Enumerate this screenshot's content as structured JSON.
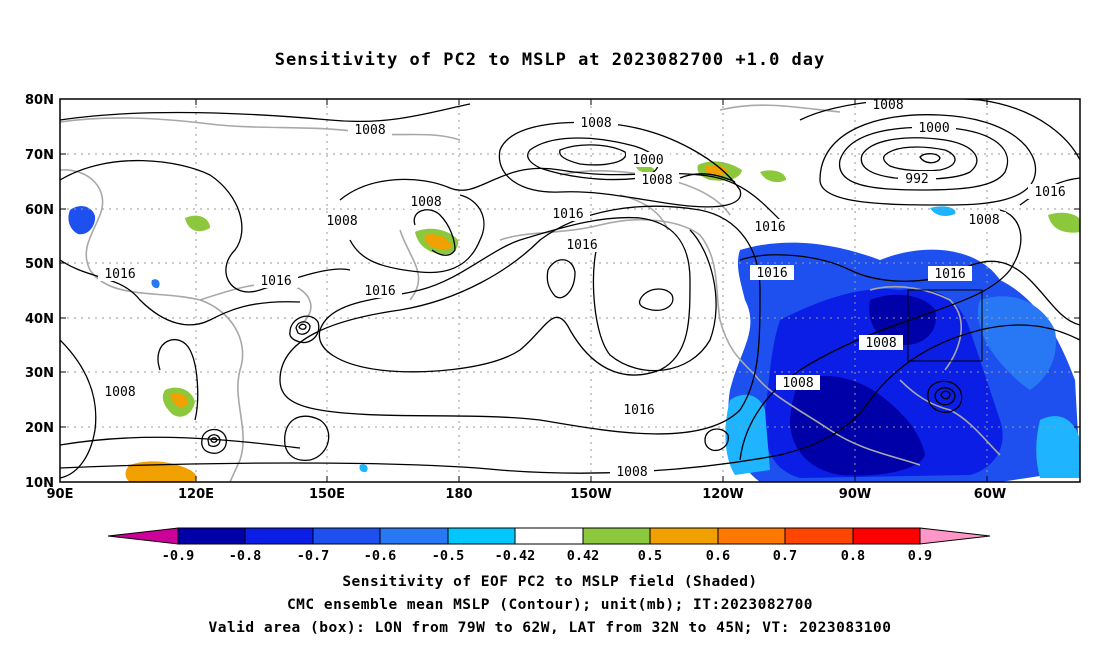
{
  "title": "Sensitivity of PC2 to MSLP at 2023082700 +1.0 day",
  "lat_labels": [
    "80N",
    "70N",
    "60N",
    "50N",
    "40N",
    "30N",
    "20N",
    "10N"
  ],
  "lon_labels": [
    "90E",
    "120E",
    "150E",
    "180",
    "150W",
    "120W",
    "90W",
    "60W"
  ],
  "contour_labels": [
    "1008",
    "1008",
    "1000",
    "1008",
    "1008",
    "1016",
    "1016",
    "1016",
    "1016",
    "1016",
    "1016",
    "1008",
    "1000",
    "992",
    "1008",
    "1016",
    "1016",
    "1008",
    "1016",
    "1008",
    "1008"
  ],
  "colorbar": {
    "labels": [
      "-0.9",
      "-0.8",
      "-0.7",
      "-0.6",
      "-0.5",
      "-0.42",
      "0.42",
      "0.5",
      "0.6",
      "0.7",
      "0.8",
      "0.9"
    ],
    "colors": [
      "#cc0099",
      "#0000a8",
      "#0a1ee6",
      "#1e50f0",
      "#2878f5",
      "#1eb4ff",
      "#00dcff",
      "#ffffff",
      "#8cc83c",
      "#f0a000",
      "#ff7800",
      "#ff4600",
      "#ff0000",
      "#ff96c8"
    ]
  },
  "valid_box": {
    "lon_from": "79W",
    "lon_to": "62W",
    "lat_from": "32N",
    "lat_to": "45N"
  },
  "captions": [
    "Sensitivity of EOF PC2 to MSLP field (Shaded)",
    "CMC ensemble mean MSLP (Contour); unit(mb); IT:2023082700",
    "Valid area (box): LON from 79W to 62W, LAT from 32N to 45N; VT: 2023083100"
  ]
}
